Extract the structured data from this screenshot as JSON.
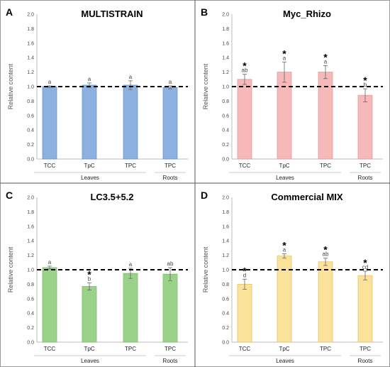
{
  "chart_data": [
    {
      "type": "bar",
      "panel_label": "A",
      "title": "MULTISTRAIN",
      "ylabel": "Relative content",
      "ylim": [
        0,
        2.0
      ],
      "yticks": [
        "0.0",
        "0.2",
        "0.4",
        "0.6",
        "0.8",
        "1.0",
        "1.2",
        "1.4",
        "1.6",
        "1.8",
        "2.0"
      ],
      "categories": [
        "TCC",
        "TpC",
        "TPC",
        "TPC"
      ],
      "groups": [
        {
          "label": "Leaves",
          "span": [
            0,
            2
          ]
        },
        {
          "label": "Roots",
          "span": [
            3,
            3
          ]
        }
      ],
      "values": [
        1.0,
        1.02,
        1.02,
        0.99
      ],
      "errors": [
        0.01,
        0.03,
        0.06,
        0.02
      ],
      "letters": [
        "a",
        "a",
        "a",
        "a"
      ],
      "stars": [
        false,
        false,
        false,
        false
      ],
      "reference_line": 1.0,
      "color": "#8cb0e0",
      "edge": "#6f97cf"
    },
    {
      "type": "bar",
      "panel_label": "B",
      "title": "Myc_Rhizo",
      "ylabel": "Relative content",
      "ylim": [
        0,
        2.0
      ],
      "yticks": [
        "0.0",
        "0.2",
        "0.4",
        "0.6",
        "0.8",
        "1.0",
        "1.2",
        "1.4",
        "1.6",
        "1.8",
        "2.0"
      ],
      "categories": [
        "TCC",
        "TpC",
        "TPC",
        "TPC"
      ],
      "groups": [
        {
          "label": "Leaves",
          "span": [
            0,
            2
          ]
        },
        {
          "label": "Roots",
          "span": [
            3,
            3
          ]
        }
      ],
      "values": [
        1.1,
        1.2,
        1.2,
        0.88
      ],
      "errors": [
        0.07,
        0.14,
        0.09,
        0.09
      ],
      "letters": [
        "ab",
        "a",
        "a",
        "b"
      ],
      "stars": [
        true,
        true,
        true,
        true
      ],
      "reference_line": 1.0,
      "color": "#f6b8b8",
      "edge": "#e29a9a"
    },
    {
      "type": "bar",
      "panel_label": "C",
      "title": "LC3.5+5.2",
      "ylabel": "Relative content",
      "ylim": [
        0,
        2.0
      ],
      "yticks": [
        "0.0",
        "0.2",
        "0.4",
        "0.6",
        "0.8",
        "1.0",
        "1.2",
        "1.4",
        "1.6",
        "1.8",
        "2.0"
      ],
      "categories": [
        "TCC",
        "TpC",
        "TPC",
        "TPC"
      ],
      "groups": [
        {
          "label": "Leaves",
          "span": [
            0,
            2
          ]
        },
        {
          "label": "Roots",
          "span": [
            3,
            3
          ]
        }
      ],
      "values": [
        1.03,
        0.77,
        0.95,
        0.94
      ],
      "errors": [
        0.02,
        0.05,
        0.07,
        0.09
      ],
      "letters": [
        "a",
        "b",
        "a",
        "ab"
      ],
      "stars": [
        false,
        true,
        false,
        false
      ],
      "reference_line": 1.0,
      "color": "#9bd28a",
      "edge": "#7fbf6c"
    },
    {
      "type": "bar",
      "panel_label": "D",
      "title": "Commercial MIX",
      "ylabel": "Relative content",
      "ylim": [
        0,
        2.0
      ],
      "yticks": [
        "0.0",
        "0.2",
        "0.4",
        "0.6",
        "0.8",
        "1.0",
        "1.2",
        "1.4",
        "1.6",
        "1.8",
        "2.0"
      ],
      "categories": [
        "TCC",
        "TpC",
        "TPC",
        "TPC"
      ],
      "groups": [
        {
          "label": "Leaves",
          "span": [
            0,
            2
          ]
        },
        {
          "label": "Roots",
          "span": [
            3,
            3
          ]
        }
      ],
      "values": [
        0.8,
        1.19,
        1.11,
        0.92
      ],
      "errors": [
        0.07,
        0.03,
        0.05,
        0.06
      ],
      "letters": [
        "d",
        "a",
        "ab",
        "cd"
      ],
      "stars": [
        true,
        true,
        true,
        true
      ],
      "reference_line": 1.0,
      "color": "#fbe29a",
      "edge": "#e5c56d"
    }
  ]
}
